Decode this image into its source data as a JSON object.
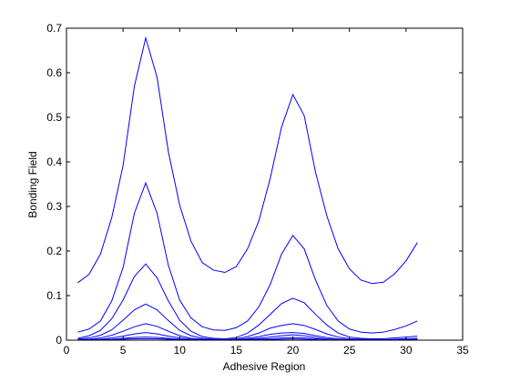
{
  "chart_data": {
    "type": "line",
    "title": "",
    "xlabel": "Adhesive Region",
    "ylabel": "Bonding Field",
    "xlim": [
      0,
      35
    ],
    "ylim": [
      0,
      0.7
    ],
    "xticks": [
      0,
      5,
      10,
      15,
      20,
      25,
      30,
      35
    ],
    "yticks": [
      0,
      0.1,
      0.2,
      0.3,
      0.4,
      0.5,
      0.6,
      0.7
    ],
    "xtick_labels": [
      "0",
      "5",
      "10",
      "15",
      "20",
      "25",
      "30",
      "35"
    ],
    "ytick_labels": [
      "0",
      "0.1",
      "0.2",
      "0.3",
      "0.4",
      "0.5",
      "0.6",
      "0.7"
    ],
    "grid": false,
    "line_color": "#0000ff",
    "x": [
      1,
      2,
      3,
      4,
      5,
      6,
      7,
      8,
      9,
      10,
      11,
      12,
      13,
      14,
      15,
      16,
      17,
      18,
      19,
      20,
      21,
      22,
      23,
      24,
      25,
      26,
      27,
      28,
      29,
      30,
      31
    ],
    "series": [
      {
        "values": [
          0.129,
          0.148,
          0.193,
          0.275,
          0.392,
          0.57,
          0.678,
          0.59,
          0.423,
          0.303,
          0.222,
          0.174,
          0.157,
          0.152,
          0.165,
          0.205,
          0.268,
          0.363,
          0.478,
          0.551,
          0.504,
          0.377,
          0.279,
          0.205,
          0.16,
          0.135,
          0.127,
          0.13,
          0.149,
          0.178,
          0.219
        ]
      },
      {
        "values": [
          0.018,
          0.025,
          0.043,
          0.088,
          0.163,
          0.285,
          0.353,
          0.285,
          0.168,
          0.09,
          0.05,
          0.03,
          0.023,
          0.022,
          0.028,
          0.043,
          0.075,
          0.125,
          0.193,
          0.235,
          0.205,
          0.135,
          0.078,
          0.043,
          0.025,
          0.018,
          0.016,
          0.018,
          0.024,
          0.032,
          0.043
        ]
      },
      {
        "values": [
          0.004,
          0.01,
          0.022,
          0.048,
          0.09,
          0.143,
          0.171,
          0.14,
          0.088,
          0.045,
          0.02,
          0.008,
          0.004,
          0.003,
          0.006,
          0.016,
          0.034,
          0.058,
          0.082,
          0.094,
          0.084,
          0.058,
          0.034,
          0.016,
          0.007,
          0.004,
          0.003,
          0.003,
          0.005,
          0.007,
          0.009
        ]
      },
      {
        "values": [
          0.002,
          0.005,
          0.011,
          0.023,
          0.045,
          0.068,
          0.081,
          0.068,
          0.044,
          0.022,
          0.01,
          0.004,
          0.002,
          0.001,
          0.003,
          0.008,
          0.016,
          0.027,
          0.033,
          0.037,
          0.033,
          0.024,
          0.014,
          0.007,
          0.003,
          0.002,
          0.001,
          0.001,
          0.002,
          0.003,
          0.004
        ]
      },
      {
        "values": [
          0.001,
          0.002,
          0.005,
          0.011,
          0.02,
          0.03,
          0.037,
          0.031,
          0.02,
          0.01,
          0.004,
          0.002,
          0.001,
          0.001,
          0.001,
          0.004,
          0.008,
          0.013,
          0.016,
          0.017,
          0.015,
          0.01,
          0.006,
          0.003,
          0.001,
          0.001,
          0.001,
          0.001,
          0.001,
          0.001,
          0.002
        ]
      },
      {
        "values": [
          0.0,
          0.001,
          0.002,
          0.005,
          0.009,
          0.014,
          0.017,
          0.014,
          0.009,
          0.005,
          0.002,
          0.001,
          0.0,
          0.0,
          0.001,
          0.002,
          0.004,
          0.007,
          0.01,
          0.012,
          0.01,
          0.006,
          0.003,
          0.001,
          0.0,
          0.0,
          0.0,
          0.0,
          0.0,
          0.001,
          0.001
        ]
      },
      {
        "values": [
          0.0,
          0.0,
          0.001,
          0.002,
          0.004,
          0.006,
          0.007,
          0.006,
          0.004,
          0.002,
          0.001,
          0.0,
          0.0,
          0.0,
          0.0,
          0.001,
          0.002,
          0.003,
          0.005,
          0.006,
          0.005,
          0.003,
          0.001,
          0.0,
          0.0,
          0.0,
          0.0,
          0.0,
          0.0,
          0.0,
          0.0
        ]
      },
      {
        "values": [
          0.0,
          0.0,
          0.0,
          0.001,
          0.002,
          0.003,
          0.003,
          0.003,
          0.002,
          0.001,
          0.0,
          0.0,
          0.0,
          0.0,
          0.0,
          0.0,
          0.001,
          0.001,
          0.002,
          0.003,
          0.002,
          0.001,
          0.0,
          0.0,
          0.0,
          0.0,
          0.0,
          0.0,
          0.0,
          0.0,
          0.0
        ]
      }
    ]
  }
}
